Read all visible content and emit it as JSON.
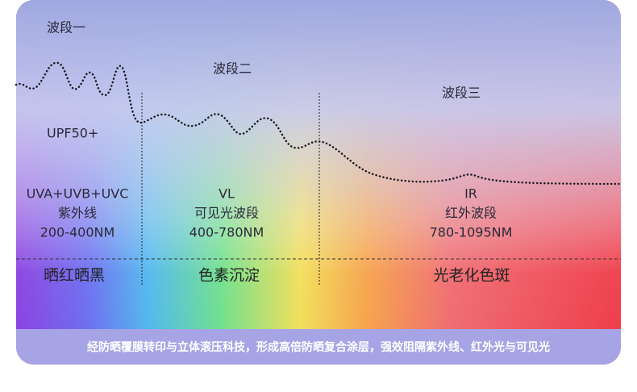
{
  "bands": [
    {
      "title": "波段一",
      "rating": "UPF50+",
      "name": "UVA+UVB+UVC",
      "type": "紫外线",
      "range": "200-400NM",
      "effect": "晒红晒黑"
    },
    {
      "title": "波段二",
      "name": "VL",
      "type": "可见光波段",
      "range": "400-780NM",
      "effect": "色素沉淀"
    },
    {
      "title": "波段三",
      "name": "IR",
      "type": "红外波段",
      "range": "780-1095NM",
      "effect": "光老化色斑"
    }
  ],
  "footer": "经防晒覆膜转印与立体滚压科技，形成高倍防晒复合涂层，强效阻隔紫外线、红外光与可见光"
}
